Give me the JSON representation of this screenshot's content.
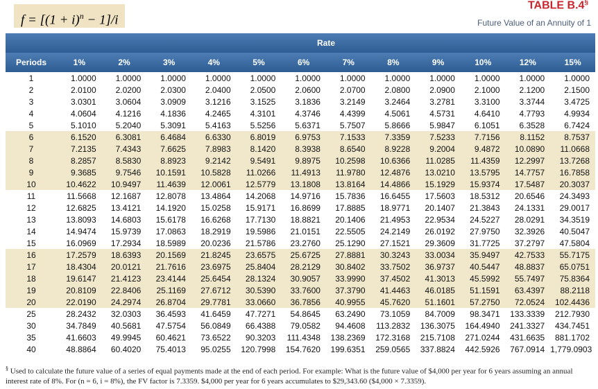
{
  "header": {
    "formula": {
      "base": "f = [(1 + i)",
      "exponent": "n",
      "rest": " − 1]/i"
    },
    "title": "TABLE B.4",
    "title_mark": "§",
    "subtitle": "Future Value of an Annuity of 1"
  },
  "table": {
    "group_label": "Rate",
    "columns": [
      "Periods",
      "1%",
      "2%",
      "3%",
      "4%",
      "5%",
      "6%",
      "7%",
      "8%",
      "9%",
      "10%",
      "12%",
      "15%"
    ],
    "rows": [
      [
        "1",
        "1.0000",
        "1.0000",
        "1.0000",
        "1.0000",
        "1.0000",
        "1.0000",
        "1.0000",
        "1.0000",
        "1.0000",
        "1.0000",
        "1.0000",
        "1.0000"
      ],
      [
        "2",
        "2.0100",
        "2.0200",
        "2.0300",
        "2.0400",
        "2.0500",
        "2.0600",
        "2.0700",
        "2.0800",
        "2.0900",
        "2.1000",
        "2.1200",
        "2.1500"
      ],
      [
        "3",
        "3.0301",
        "3.0604",
        "3.0909",
        "3.1216",
        "3.1525",
        "3.1836",
        "3.2149",
        "3.2464",
        "3.2781",
        "3.3100",
        "3.3744",
        "3.4725"
      ],
      [
        "4",
        "4.0604",
        "4.1216",
        "4.1836",
        "4.2465",
        "4.3101",
        "4.3746",
        "4.4399",
        "4.5061",
        "4.5731",
        "4.6410",
        "4.7793",
        "4.9934"
      ],
      [
        "5",
        "5.1010",
        "5.2040",
        "5.3091",
        "5.4163",
        "5.5256",
        "5.6371",
        "5.7507",
        "5.8666",
        "5.9847",
        "6.1051",
        "6.3528",
        "6.7424"
      ],
      [
        "6",
        "6.1520",
        "6.3081",
        "6.4684",
        "6.6330",
        "6.8019",
        "6.9753",
        "7.1533",
        "7.3359",
        "7.5233",
        "7.7156",
        "8.1152",
        "8.7537"
      ],
      [
        "7",
        "7.2135",
        "7.4343",
        "7.6625",
        "7.8983",
        "8.1420",
        "8.3938",
        "8.6540",
        "8.9228",
        "9.2004",
        "9.4872",
        "10.0890",
        "11.0668"
      ],
      [
        "8",
        "8.2857",
        "8.5830",
        "8.8923",
        "9.2142",
        "9.5491",
        "9.8975",
        "10.2598",
        "10.6366",
        "11.0285",
        "11.4359",
        "12.2997",
        "13.7268"
      ],
      [
        "9",
        "9.3685",
        "9.7546",
        "10.1591",
        "10.5828",
        "11.0266",
        "11.4913",
        "11.9780",
        "12.4876",
        "13.0210",
        "13.5795",
        "14.7757",
        "16.7858"
      ],
      [
        "10",
        "10.4622",
        "10.9497",
        "11.4639",
        "12.0061",
        "12.5779",
        "13.1808",
        "13.8164",
        "14.4866",
        "15.1929",
        "15.9374",
        "17.5487",
        "20.3037"
      ],
      [
        "11",
        "11.5668",
        "12.1687",
        "12.8078",
        "13.4864",
        "14.2068",
        "14.9716",
        "15.7836",
        "16.6455",
        "17.5603",
        "18.5312",
        "20.6546",
        "24.3493"
      ],
      [
        "12",
        "12.6825",
        "13.4121",
        "14.1920",
        "15.0258",
        "15.9171",
        "16.8699",
        "17.8885",
        "18.9771",
        "20.1407",
        "21.3843",
        "24.1331",
        "29.0017"
      ],
      [
        "13",
        "13.8093",
        "14.6803",
        "15.6178",
        "16.6268",
        "17.7130",
        "18.8821",
        "20.1406",
        "21.4953",
        "22.9534",
        "24.5227",
        "28.0291",
        "34.3519"
      ],
      [
        "14",
        "14.9474",
        "15.9739",
        "17.0863",
        "18.2919",
        "19.5986",
        "21.0151",
        "22.5505",
        "24.2149",
        "26.0192",
        "27.9750",
        "32.3926",
        "40.5047"
      ],
      [
        "15",
        "16.0969",
        "17.2934",
        "18.5989",
        "20.0236",
        "21.5786",
        "23.2760",
        "25.1290",
        "27.1521",
        "29.3609",
        "31.7725",
        "37.2797",
        "47.5804"
      ],
      [
        "16",
        "17.2579",
        "18.6393",
        "20.1569",
        "21.8245",
        "23.6575",
        "25.6725",
        "27.8881",
        "30.3243",
        "33.0034",
        "35.9497",
        "42.7533",
        "55.7175"
      ],
      [
        "17",
        "18.4304",
        "20.0121",
        "21.7616",
        "23.6975",
        "25.8404",
        "28.2129",
        "30.8402",
        "33.7502",
        "36.9737",
        "40.5447",
        "48.8837",
        "65.0751"
      ],
      [
        "18",
        "19.6147",
        "21.4123",
        "23.4144",
        "25.6454",
        "28.1324",
        "30.9057",
        "33.9990",
        "37.4502",
        "41.3013",
        "45.5992",
        "55.7497",
        "75.8364"
      ],
      [
        "19",
        "20.8109",
        "22.8406",
        "25.1169",
        "27.6712",
        "30.5390",
        "33.7600",
        "37.3790",
        "41.4463",
        "46.0185",
        "51.1591",
        "63.4397",
        "88.2118"
      ],
      [
        "20",
        "22.0190",
        "24.2974",
        "26.8704",
        "29.7781",
        "33.0660",
        "36.7856",
        "40.9955",
        "45.7620",
        "51.1601",
        "57.2750",
        "72.0524",
        "102.4436"
      ],
      [
        "25",
        "28.2432",
        "32.0303",
        "36.4593",
        "41.6459",
        "47.7271",
        "54.8645",
        "63.2490",
        "73.1059",
        "84.7009",
        "98.3471",
        "133.3339",
        "212.7930"
      ],
      [
        "30",
        "34.7849",
        "40.5681",
        "47.5754",
        "56.0849",
        "66.4388",
        "79.0582",
        "94.4608",
        "113.2832",
        "136.3075",
        "164.4940",
        "241.3327",
        "434.7451"
      ],
      [
        "35",
        "41.6603",
        "49.9945",
        "60.4621",
        "73.6522",
        "90.3203",
        "111.4348",
        "138.2369",
        "172.3168",
        "215.7108",
        "271.0244",
        "431.6635",
        "881.1702"
      ],
      [
        "40",
        "48.8864",
        "60.4020",
        "75.4013",
        "95.0255",
        "120.7998",
        "154.7620",
        "199.6351",
        "259.0565",
        "337.8824",
        "442.5926",
        "767.0914",
        "1,779.0903"
      ]
    ]
  },
  "footnote": {
    "mark": "§",
    "text": "Used to calculate the future value of a series of equal payments made at the end of each period. For example: What is the future value of $4,000 per year for 6 years assuming an annual interest rate of 8%. For (n = 6, i = 8%), the FV factor is 7.3359. $4,000 per year for 6 years accumulates to $29,343.60 ($4,000 × 7.3359)."
  }
}
